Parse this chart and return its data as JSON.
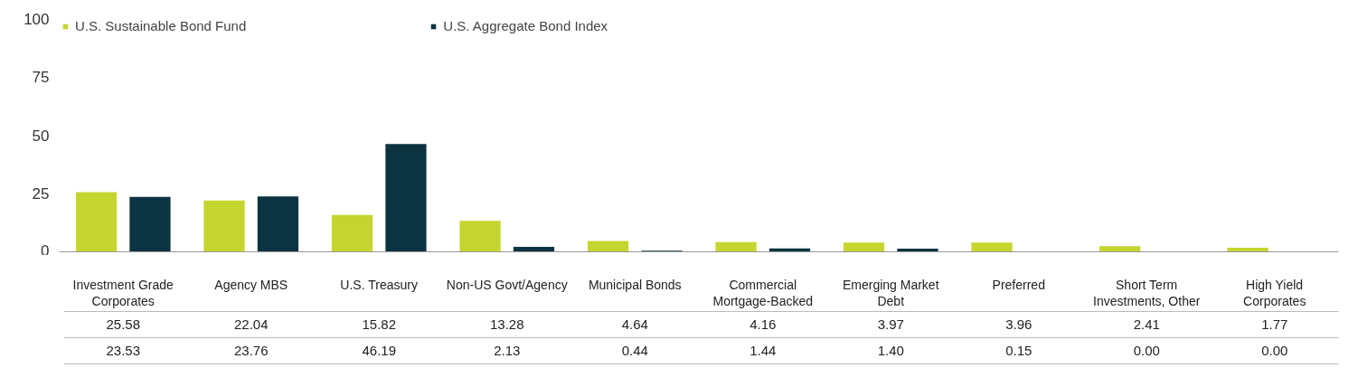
{
  "chart_data": {
    "type": "bar",
    "categories": [
      "Investment Grade Corporates",
      "Agency MBS",
      "U.S. Treasury",
      "Non-US Govt/Agency",
      "Municipal Bonds",
      "Commercial Mortgage-Backed",
      "Emerging Market Debt",
      "Preferred",
      "Short Term Investments, Other",
      "High Yield Corporates"
    ],
    "series": [
      {
        "name": "U.S. Sustainable Bond Fund",
        "color": "#c5d52f",
        "values": [
          25.58,
          22.04,
          15.82,
          13.28,
          4.64,
          4.16,
          3.97,
          3.96,
          2.41,
          1.77
        ],
        "value_labels": [
          "25.58",
          "22.04",
          "15.82",
          "13.28",
          "4.64",
          "4.16",
          "3.97",
          "3.96",
          "2.41",
          "1.77"
        ]
      },
      {
        "name": "U.S. Aggregate Bond Index",
        "color": "#0c3440",
        "values": [
          23.53,
          23.76,
          46.19,
          2.13,
          0.44,
          1.44,
          1.4,
          0.15,
          0.0,
          0.0
        ],
        "value_labels": [
          "23.53",
          "23.76",
          "46.19",
          "2.13",
          "0.44",
          "1.44",
          "1.40",
          "0.15",
          "0.00",
          "0.00"
        ]
      }
    ],
    "ylim": [
      0,
      100
    ],
    "yticks": [
      0,
      25,
      50,
      75,
      100
    ],
    "grid": false,
    "legend": "top left"
  }
}
